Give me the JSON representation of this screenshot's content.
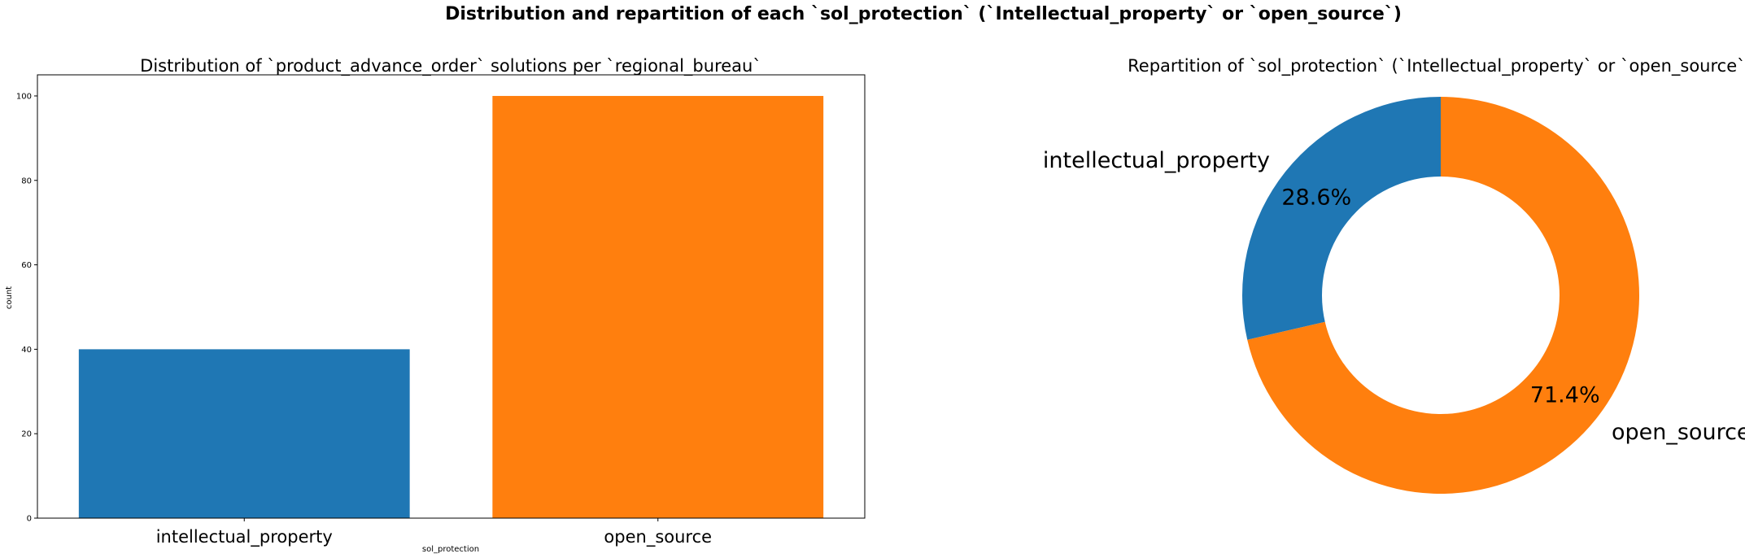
{
  "figure": {
    "suptitle": "Distribution and repartition of each `sol_protection` (`Intellectual_property` or `open_source`)"
  },
  "chart_data": [
    {
      "type": "bar",
      "title": "Distribution of `product_advance_order` solutions per `regional_bureau`",
      "xlabel": "sol_protection",
      "ylabel": "count",
      "categories": [
        "intellectual_property",
        "open_source"
      ],
      "values": [
        40,
        100
      ],
      "colors": [
        "#1f77b4",
        "#ff7f0e"
      ],
      "ylim": [
        0,
        105
      ],
      "yticks": [
        0,
        20,
        40,
        60,
        80,
        100
      ],
      "ytick_labels": [
        "0",
        "20",
        "40",
        "60",
        "80",
        "100"
      ],
      "grid": false
    },
    {
      "type": "pie",
      "style": "donut",
      "title": "Repartition of `sol_protection` (`Intellectual_property` or `open_source`)",
      "labels": [
        "intellectual_property",
        "open_source"
      ],
      "values": [
        28.6,
        71.4
      ],
      "value_labels": [
        "28.6%",
        "71.4%"
      ],
      "colors": [
        "#1f77b4",
        "#ff7f0e"
      ],
      "start_angle": 90,
      "direction": "counterclockwise"
    }
  ]
}
